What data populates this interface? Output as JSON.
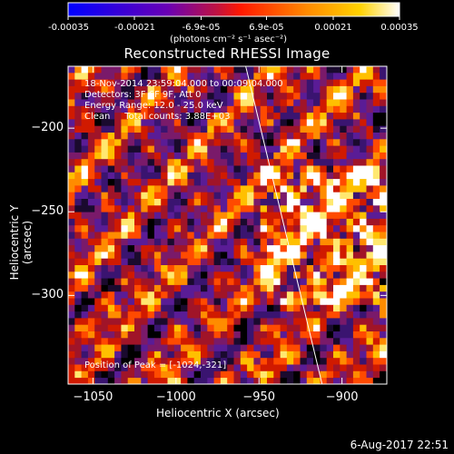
{
  "colorbar": {
    "tick_labels": [
      "-0.00035",
      "-0.00021",
      "-6.9e-05",
      "6.9e-05",
      "0.00021",
      "0.00035"
    ],
    "tick_values": [
      -0.00035,
      -0.00021,
      -6.9e-05,
      6.9e-05,
      0.00021,
      0.00035
    ],
    "range": [
      -0.00035,
      0.00035
    ],
    "units": "(photons cm⁻² s⁻¹ asec⁻²)"
  },
  "annotations": {
    "time": "18-Nov-2014 23:59:04.000 to 00:09:04.000",
    "detectors": "Detectors: 3F 6F 9F, Att 0",
    "energy": "Energy Range: 12.0 - 25.0 keV",
    "clean": "Clean     Total counts: 3.88E+03",
    "peak": "Position of Peak = [-1024,-321]"
  },
  "footer": {
    "date": "6-Aug-2017 22:51"
  },
  "chart_data": {
    "type": "heatmap",
    "title": "Reconstructed RHESSI Image",
    "xlabel": "Heliocentric X (arcsec)",
    "ylabel": "Heliocentric Y (arcsec)",
    "xlim": [
      -1065,
      -873
    ],
    "ylim": [
      -353,
      -163
    ],
    "x_ticks": [
      -1050,
      -1000,
      -950,
      -900
    ],
    "x_tick_labels": [
      "−1050",
      "−1000",
      "−950",
      "−900"
    ],
    "y_ticks": [
      -200,
      -250,
      -300
    ],
    "y_tick_labels": [
      "−200",
      "−250",
      "−300"
    ],
    "limb_line": {
      "x": [
        -958,
        -912
      ],
      "y": [
        -163,
        -353
      ]
    },
    "colors": {
      "background": "#000000",
      "text": "#ffffff",
      "axes": "#ffffff"
    }
  }
}
